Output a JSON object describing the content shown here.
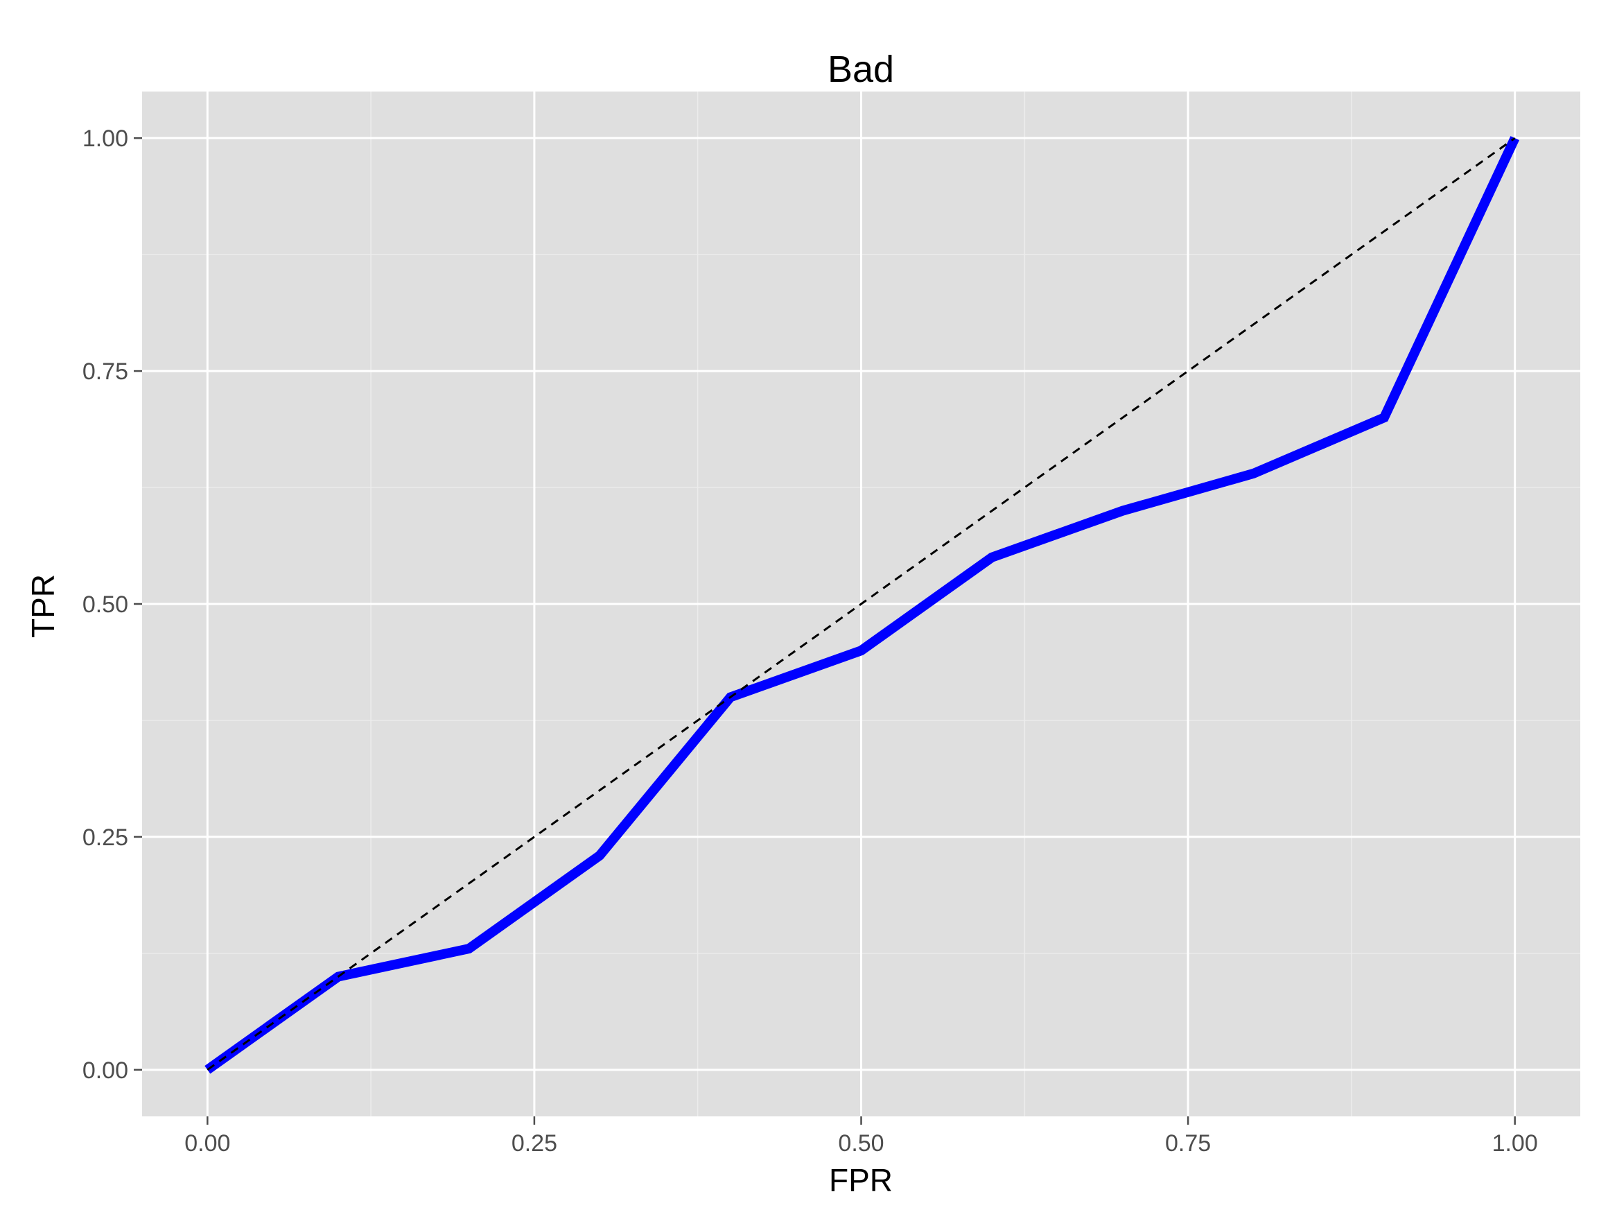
{
  "chart_data": {
    "type": "line",
    "title": "Bad",
    "xlabel": "FPR",
    "ylabel": "TPR",
    "xlim": [
      -0.05,
      1.05
    ],
    "ylim": [
      -0.05,
      1.05
    ],
    "x_ticks": [
      0,
      0.25,
      0.5,
      0.75,
      1
    ],
    "y_ticks": [
      0,
      0.25,
      0.5,
      0.75,
      1
    ],
    "x_tick_labels": [
      "0.00",
      "0.25",
      "0.50",
      "0.75",
      "1.00"
    ],
    "y_tick_labels": [
      "0.00",
      "0.25",
      "0.50",
      "0.75",
      "1.00"
    ],
    "grid": true,
    "series": [
      {
        "style": "solid",
        "color": "#0000ff",
        "x": [
          0,
          0.1,
          0.2,
          0.3,
          0.4,
          0.5,
          0.6,
          0.7,
          0.8,
          0.9,
          1.0
        ],
        "y": [
          0,
          0.1,
          0.13,
          0.23,
          0.4,
          0.45,
          0.55,
          0.6,
          0.64,
          0.7,
          1.0
        ]
      },
      {
        "style": "dashed",
        "color": "#000000",
        "x": [
          0,
          1
        ],
        "y": [
          0,
          1
        ]
      }
    ],
    "colors": {
      "panel": "#dfdfdf",
      "grid_major": "#ffffff",
      "grid_minor": "#ececec"
    }
  }
}
